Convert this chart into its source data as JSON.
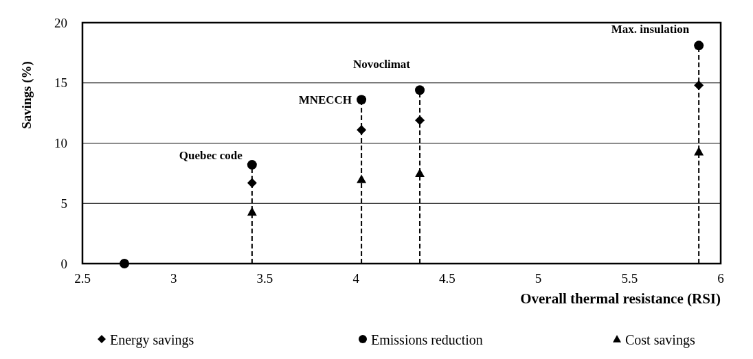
{
  "chart_data": {
    "type": "scatter",
    "xlabel": "Overall thermal resistance (RSI)",
    "ylabel": "Savings (%)",
    "x": [
      2.73,
      3.43,
      4.03,
      4.35,
      5.88
    ],
    "series": [
      {
        "type": "line",
        "color": "#000000",
        "line_style": "dashed",
        "marker": "none",
        "x": [
          3.43,
          3.43
        ],
        "values": [
          0,
          8.2
        ]
      },
      {
        "type": "line",
        "color": "#000000",
        "line_style": "dashed",
        "marker": "none",
        "x": [
          4.03,
          4.03
        ],
        "values": [
          0,
          13.6
        ]
      },
      {
        "type": "line",
        "color": "#000000",
        "line_style": "dashed",
        "marker": "none",
        "x": [
          4.35,
          4.35
        ],
        "values": [
          0,
          14.4
        ]
      },
      {
        "type": "line",
        "color": "#000000",
        "line_style": "dashed",
        "marker": "none",
        "x": [
          5.88,
          5.88
        ],
        "values": [
          0,
          18.1
        ]
      },
      {
        "name": "Energy savings",
        "color": "#000000",
        "marker": "diamond",
        "values": [
          null,
          6.7,
          11.1,
          11.9,
          14.8
        ]
      },
      {
        "name": "Emissions reduction",
        "color": "#000000",
        "marker": "circle",
        "values": [
          0,
          8.2,
          13.6,
          14.4,
          18.1
        ]
      },
      {
        "name": "Cost savings",
        "color": "#000000",
        "marker": "triangle",
        "values": [
          null,
          4.3,
          7.0,
          7.5,
          9.3
        ]
      }
    ],
    "annotations": [
      {
        "text": "Quebec code",
        "x": 3.43,
        "y": 8.2
      },
      {
        "text": "MNECCH",
        "x": 4.03,
        "y": 13.6
      },
      {
        "text": "Novoclimat",
        "x": 4.35,
        "y": 14.4
      },
      {
        "text": "Max. insulation",
        "x": 5.88,
        "y": 18.1
      }
    ],
    "xlim": [
      2.5,
      6
    ],
    "xticks": [
      2.5,
      3,
      3.5,
      4,
      4.5,
      5,
      5.5,
      6
    ],
    "ylim": [
      0,
      20
    ],
    "yticks": [
      0,
      5,
      10,
      15,
      20
    ],
    "grid": "y",
    "legend": "bottom"
  }
}
